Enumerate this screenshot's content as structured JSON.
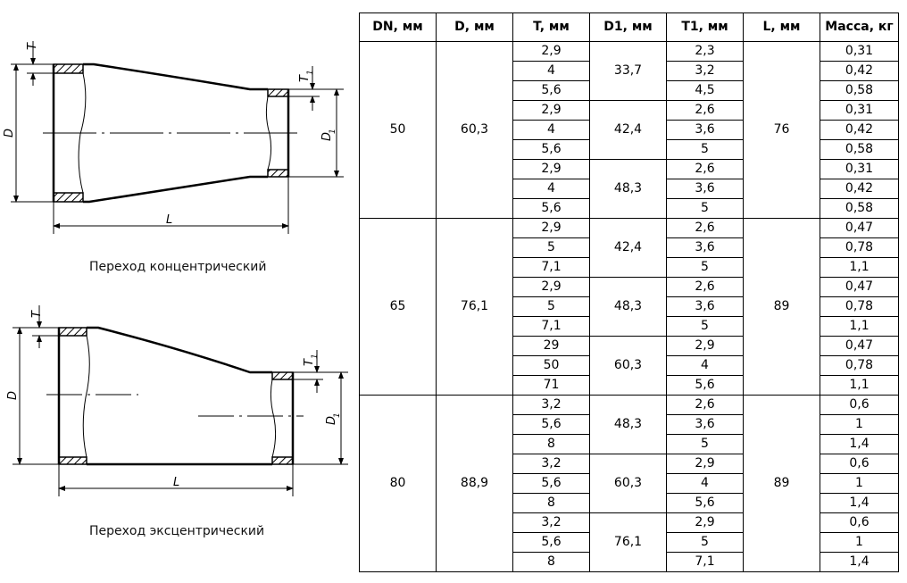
{
  "drawings": {
    "concentric": {
      "caption": "Переход концентрический",
      "labels": {
        "T": "T",
        "T1": "T",
        "sub": "1",
        "D": "D",
        "D1": "D",
        "L": "L"
      }
    },
    "eccentric": {
      "caption": "Переход эксцентрический",
      "labels": {
        "T": "T",
        "T1": "T",
        "sub": "1",
        "D": "D",
        "D1": "D",
        "L": "L"
      }
    }
  },
  "table": {
    "headers": [
      "DN, мм",
      "D, мм",
      "T, мм",
      "D1, мм",
      "T1, мм",
      "L, мм",
      "Масса, кг"
    ],
    "groups": [
      {
        "DN": "50",
        "D": "60,3",
        "L": "76",
        "sub": [
          {
            "D1": "33,7",
            "rows": [
              [
                "2,9",
                "2,3",
                "0,31"
              ],
              [
                "4",
                "3,2",
                "0,42"
              ],
              [
                "5,6",
                "4,5",
                "0,58"
              ]
            ]
          },
          {
            "D1": "42,4",
            "rows": [
              [
                "2,9",
                "2,6",
                "0,31"
              ],
              [
                "4",
                "3,6",
                "0,42"
              ],
              [
                "5,6",
                "5",
                "0,58"
              ]
            ]
          },
          {
            "D1": "48,3",
            "rows": [
              [
                "2,9",
                "2,6",
                "0,31"
              ],
              [
                "4",
                "3,6",
                "0,42"
              ],
              [
                "5,6",
                "5",
                "0,58"
              ]
            ]
          }
        ]
      },
      {
        "DN": "65",
        "D": "76,1",
        "L": "89",
        "sub": [
          {
            "D1": "42,4",
            "rows": [
              [
                "2,9",
                "2,6",
                "0,47"
              ],
              [
                "5",
                "3,6",
                "0,78"
              ],
              [
                "7,1",
                "5",
                "1,1"
              ]
            ]
          },
          {
            "D1": "48,3",
            "rows": [
              [
                "2,9",
                "2,6",
                "0,47"
              ],
              [
                "5",
                "3,6",
                "0,78"
              ],
              [
                "7,1",
                "5",
                "1,1"
              ]
            ]
          },
          {
            "D1": "60,3",
            "rows": [
              [
                "29",
                "2,9",
                "0,47"
              ],
              [
                "50",
                "4",
                "0,78"
              ],
              [
                "71",
                "5,6",
                "1,1"
              ]
            ]
          }
        ]
      },
      {
        "DN": "80",
        "D": "88,9",
        "L": "89",
        "sub": [
          {
            "D1": "48,3",
            "rows": [
              [
                "3,2",
                "2,6",
                "0,6"
              ],
              [
                "5,6",
                "3,6",
                "1"
              ],
              [
                "8",
                "5",
                "1,4"
              ]
            ]
          },
          {
            "D1": "60,3",
            "rows": [
              [
                "3,2",
                "2,9",
                "0,6"
              ],
              [
                "5,6",
                "4",
                "1"
              ],
              [
                "8",
                "5,6",
                "1,4"
              ]
            ]
          },
          {
            "D1": "76,1",
            "rows": [
              [
                "3,2",
                "2,9",
                "0,6"
              ],
              [
                "5,6",
                "5",
                "1"
              ],
              [
                "8",
                "7,1",
                "1,4"
              ]
            ]
          }
        ]
      }
    ]
  }
}
